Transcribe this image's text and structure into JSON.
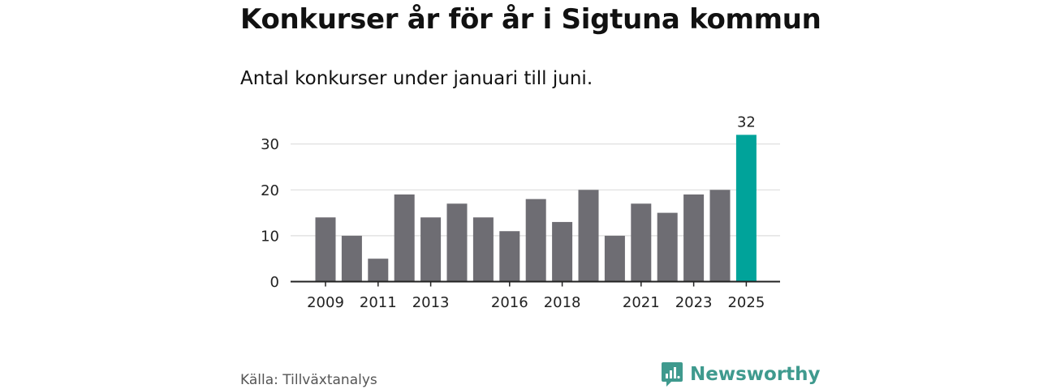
{
  "header": {
    "title": "Konkurser år för år i Sigtuna kommun",
    "subtitle": "Antal konkurser under januari till juni."
  },
  "footer": {
    "source": "Källa: Tillväxtanalys",
    "brand": "Newsworthy",
    "brand_icon": "newsworthy-logo-icon"
  },
  "colors": {
    "bar": "#6e6d73",
    "highlight": "#00a39a",
    "grid": "#dddddd",
    "axis": "#222222",
    "brand": "#3f9a8e"
  },
  "chart_data": {
    "type": "bar",
    "title": "Konkurser år för år i Sigtuna kommun",
    "subtitle": "Antal konkurser under januari till juni.",
    "categories": [
      "2009",
      "2010",
      "2011",
      "2012",
      "2013",
      "2014",
      "2015",
      "2016",
      "2017",
      "2018",
      "2019",
      "2020",
      "2021",
      "2022",
      "2023",
      "2024",
      "2025"
    ],
    "values": [
      14,
      10,
      5,
      19,
      14,
      17,
      14,
      11,
      18,
      13,
      20,
      10,
      17,
      15,
      19,
      20,
      32
    ],
    "x_tick_labels": [
      "2009",
      "2011",
      "2013",
      "2016",
      "2018",
      "2021",
      "2023",
      "2025"
    ],
    "y_ticks": [
      0,
      10,
      20,
      30
    ],
    "ylim": [
      0,
      32
    ],
    "grid": true,
    "highlight_category": "2025",
    "data_labels": [
      {
        "category": "2025",
        "text": "32"
      }
    ],
    "xlabel": "",
    "ylabel": ""
  }
}
